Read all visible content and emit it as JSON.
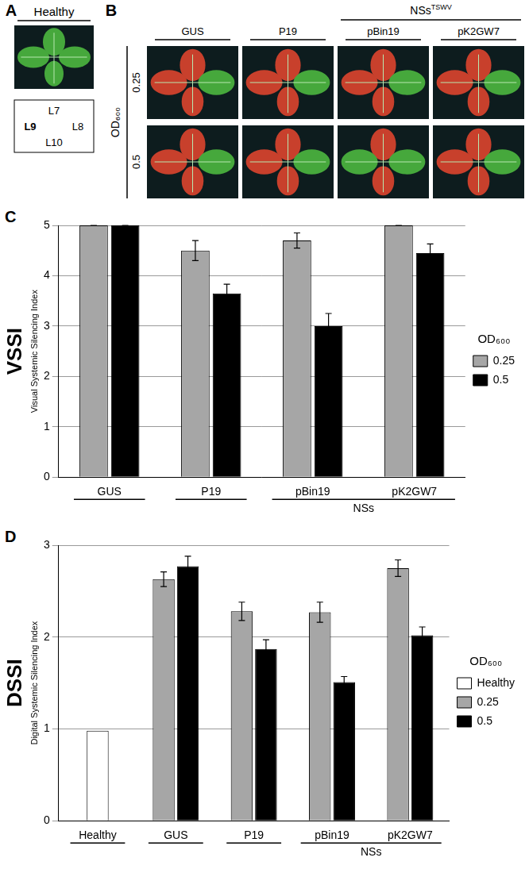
{
  "panel_a": {
    "panel": "A",
    "label": "Healthy",
    "leaf_map": {
      "top": "L7",
      "left": "L9",
      "right": "L8",
      "bottom": "L10"
    }
  },
  "panel_b": {
    "panel": "B",
    "columns": [
      "GUS",
      "P19",
      "pBin19",
      "pK2GW7"
    ],
    "group_label": "NSs",
    "group_superscript": "TSWV",
    "group_columns": [
      "pBin19",
      "pK2GW7"
    ],
    "row_title": "OD₆₀₀",
    "rows": [
      "0.25",
      "0.5"
    ]
  },
  "chart_data": [
    {
      "panel": "C",
      "type": "bar",
      "y_label": "VSSI",
      "y_sublabel": "Visual Systemic Silencing Index",
      "categories": [
        "GUS",
        "P19",
        "pBin19",
        "pK2GW7"
      ],
      "groups": [
        {
          "label": "NSs",
          "categories": [
            "pBin19",
            "pK2GW7"
          ]
        }
      ],
      "legend_title": "OD₆₀₀",
      "series": [
        {
          "name": "0.25",
          "color": "#a6a6a6",
          "values": [
            5,
            4.5,
            4.7,
            5
          ],
          "errors": [
            0,
            0.2,
            0.15,
            0
          ]
        },
        {
          "name": "0.5",
          "color": "#000000",
          "values": [
            5,
            3.65,
            3.0,
            4.45
          ],
          "errors": [
            0,
            0.18,
            0.25,
            0.18
          ]
        }
      ],
      "ylim": [
        0,
        5
      ],
      "yticks": [
        0,
        1,
        2,
        3,
        4,
        5
      ],
      "grid": true,
      "legend": "right"
    },
    {
      "panel": "D",
      "type": "bar",
      "y_label": "DSSI",
      "y_sublabel": "Digital Systemic Silencing Index",
      "categories": [
        "Healthy",
        "GUS",
        "P19",
        "pBin19",
        "pK2GW7"
      ],
      "groups": [
        {
          "label": "NSs",
          "categories": [
            "pBin19",
            "pK2GW7"
          ]
        }
      ],
      "legend_title": "OD₆₀₀",
      "series": [
        {
          "name": "Healthy",
          "color": "#ffffff",
          "values": [
            0.98,
            null,
            null,
            null,
            null
          ]
        },
        {
          "name": "0.25",
          "color": "#a6a6a6",
          "values": [
            null,
            2.63,
            2.28,
            2.27,
            2.75
          ],
          "errors": [
            null,
            0.08,
            0.1,
            0.11,
            0.09
          ]
        },
        {
          "name": "0.5",
          "color": "#000000",
          "values": [
            null,
            2.77,
            1.87,
            1.51,
            2.02
          ],
          "errors": [
            null,
            0.11,
            0.1,
            0.06,
            0.09
          ]
        }
      ],
      "ylim": [
        0,
        3
      ],
      "yticks": [
        0,
        1,
        2,
        3
      ],
      "grid": true,
      "legend": "right"
    }
  ]
}
